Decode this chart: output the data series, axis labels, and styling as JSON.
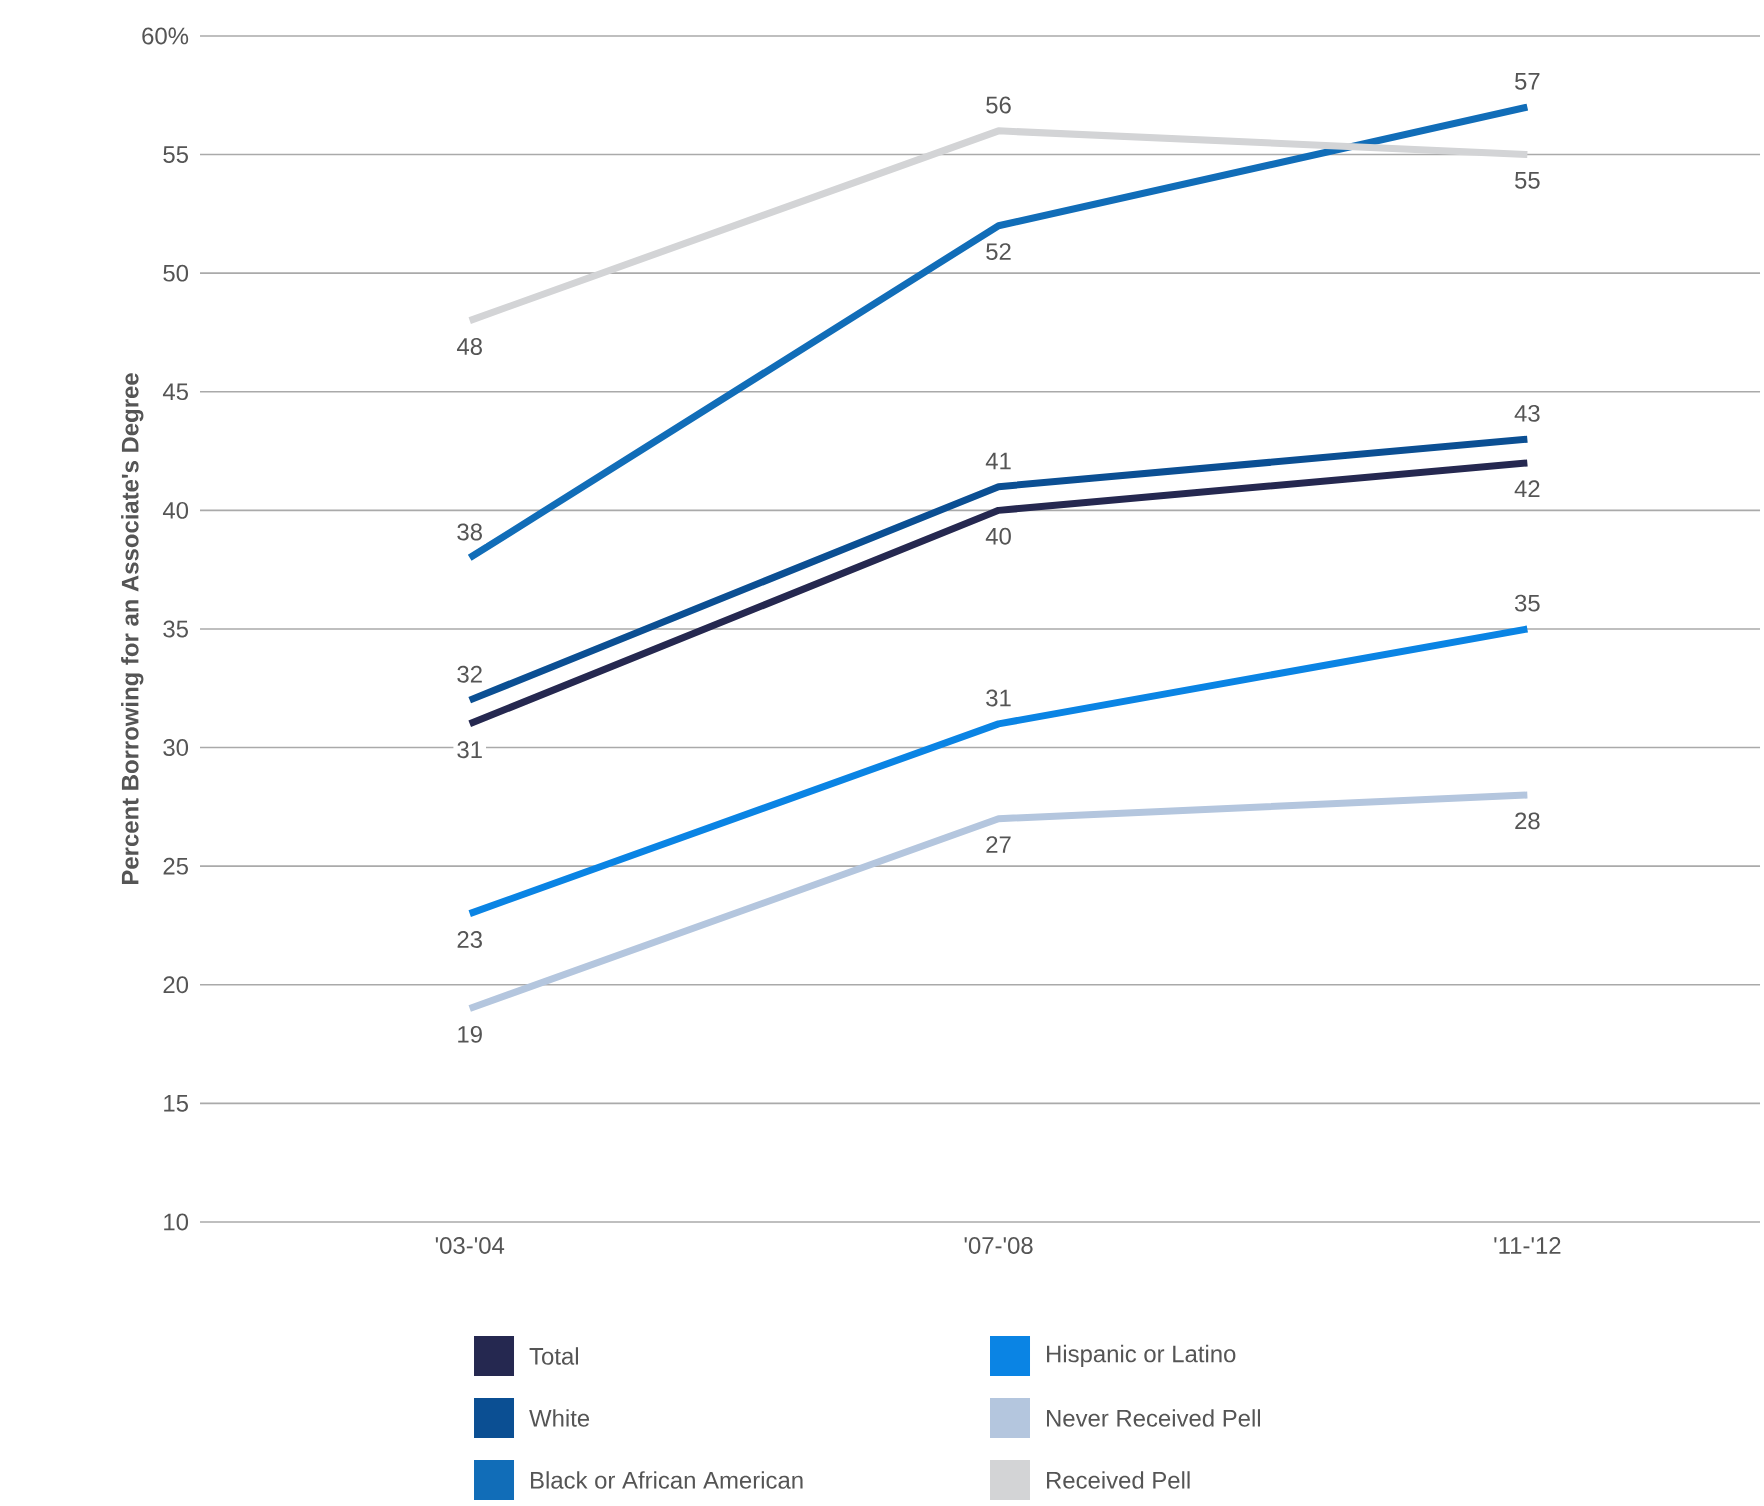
{
  "chart_data": {
    "type": "line",
    "ylabel": "Percent Borrowing for an Associate's Degree",
    "categories": [
      "'03-'04",
      "'07-'08",
      "'11-'12"
    ],
    "series": [
      {
        "name": "Total",
        "color": "#252850",
        "values": [
          31,
          40,
          42
        ]
      },
      {
        "name": "White",
        "color": "#0b4f93",
        "values": [
          32,
          41,
          43
        ]
      },
      {
        "name": "Black or African American",
        "color": "#116db8",
        "values": [
          38,
          52,
          57
        ]
      },
      {
        "name": "Hispanic or Latino",
        "color": "#0a84e4",
        "values": [
          23,
          31,
          35
        ]
      },
      {
        "name": "Never Received Pell",
        "color": "#b4c6de",
        "values": [
          19,
          27,
          28
        ]
      },
      {
        "name": "Received Pell",
        "color": "#d3d4d6",
        "values": [
          48,
          56,
          55
        ]
      }
    ],
    "ylim": [
      10,
      60
    ],
    "yticks": [
      10,
      15,
      20,
      25,
      30,
      35,
      40,
      45,
      50,
      55,
      {
        "value": 60,
        "label": "60%"
      }
    ],
    "grid": "y",
    "legend": "bottom",
    "data_labels": true,
    "marker": "none",
    "line_style": "solid"
  }
}
